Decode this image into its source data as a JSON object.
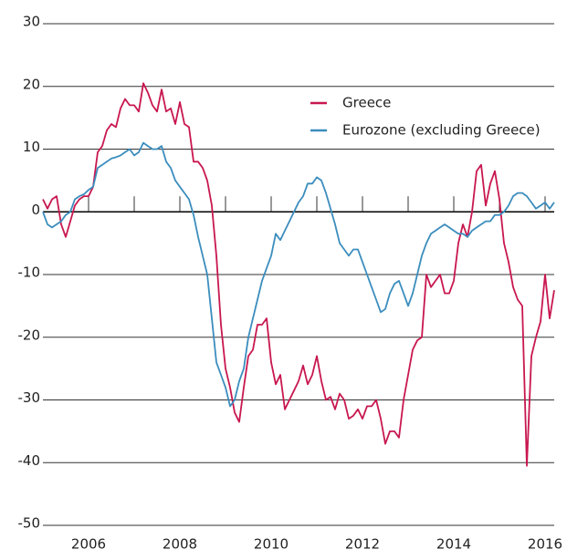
{
  "chart_data": {
    "type": "line",
    "x": [
      2005,
      2005.1,
      2005.2,
      2005.3,
      2005.4,
      2005.5,
      2005.6,
      2005.7,
      2005.8,
      2005.9,
      2006,
      2006.1,
      2006.2,
      2006.3,
      2006.4,
      2006.5,
      2006.6,
      2006.7,
      2006.8,
      2006.9,
      2007,
      2007.1,
      2007.2,
      2007.3,
      2007.4,
      2007.5,
      2007.6,
      2007.7,
      2007.8,
      2007.9,
      2008,
      2008.1,
      2008.2,
      2008.3,
      2008.4,
      2008.5,
      2008.6,
      2008.7,
      2008.8,
      2008.9,
      2009,
      2009.1,
      2009.2,
      2009.3,
      2009.4,
      2009.5,
      2009.6,
      2009.7,
      2009.8,
      2009.9,
      2010,
      2010.1,
      2010.2,
      2010.3,
      2010.4,
      2010.5,
      2010.6,
      2010.7,
      2010.8,
      2010.9,
      2011,
      2011.1,
      2011.2,
      2011.3,
      2011.4,
      2011.5,
      2011.6,
      2011.7,
      2011.8,
      2011.9,
      2012,
      2012.1,
      2012.2,
      2012.3,
      2012.4,
      2012.5,
      2012.6,
      2012.7,
      2012.8,
      2012.9,
      2013,
      2013.1,
      2013.2,
      2013.3,
      2013.4,
      2013.5,
      2013.6,
      2013.7,
      2013.8,
      2013.9,
      2014,
      2014.1,
      2014.2,
      2014.3,
      2014.4,
      2014.5,
      2014.6,
      2014.7,
      2014.8,
      2014.9,
      2015,
      2015.1,
      2015.2,
      2015.3,
      2015.4,
      2015.5,
      2015.6,
      2015.7,
      2015.8,
      2015.9,
      2016,
      2016.1,
      2016.2
    ],
    "series": [
      {
        "name": "Greece",
        "color": "#c8174f",
        "values": [
          2,
          0.5,
          2,
          2.5,
          -2,
          -4,
          -1.5,
          1,
          2,
          2.5,
          2.5,
          4,
          9.5,
          10.5,
          13,
          14,
          13.5,
          16.5,
          18,
          17,
          17,
          16,
          20.5,
          19,
          17,
          16,
          19.5,
          16,
          16.5,
          14,
          17.5,
          14,
          13.5,
          8,
          8,
          7,
          5,
          1,
          -7,
          -18,
          -25,
          -28,
          -32,
          -33.5,
          -28,
          -23,
          -22,
          -18,
          -18,
          -17,
          -24,
          -27.5,
          -26,
          -31.5,
          -30,
          -28.5,
          -27,
          -24.5,
          -27.5,
          -26,
          -23,
          -27,
          -30,
          -29.5,
          -31.5,
          -29,
          -30,
          -33,
          -32.5,
          -31.5,
          -33,
          -31,
          -31,
          -30,
          -33,
          -37,
          -35,
          -35,
          -36,
          -30,
          -26,
          -22,
          -20.5,
          -20,
          -10,
          -12,
          -11,
          -10,
          -13,
          -13,
          -11,
          -5,
          -2,
          -4,
          0,
          6.5,
          7.5,
          1,
          4.5,
          6.5,
          2,
          -5,
          -8,
          -12,
          -14,
          -15,
          -40.5,
          -23,
          -20,
          -17.5,
          -10,
          -17,
          -12.5
        ]
      },
      {
        "name": "Eurozone (excluding Greece)",
        "color": "#3b8dbd",
        "values": [
          0,
          -2,
          -2.5,
          -2,
          -1.5,
          -0.5,
          0,
          2,
          2.5,
          2.8,
          3.5,
          4,
          7,
          7.5,
          8,
          8.5,
          8.7,
          9,
          9.5,
          10,
          9,
          9.5,
          11,
          10.5,
          10,
          10,
          10.5,
          8,
          7,
          5,
          4,
          3,
          2,
          -0.5,
          -4,
          -7,
          -10,
          -17,
          -24,
          -26,
          -28,
          -31,
          -30,
          -27,
          -25,
          -20,
          -17,
          -14,
          -11,
          -9,
          -7,
          -3.5,
          -4.5,
          -3,
          -1.5,
          0,
          1.5,
          2.5,
          4.5,
          4.5,
          5.5,
          5,
          3,
          0.5,
          -2,
          -5,
          -6,
          -7,
          -6,
          -6,
          -8,
          -10,
          -12,
          -14,
          -16,
          -15.5,
          -13,
          -11.5,
          -11,
          -13,
          -15,
          -13,
          -10,
          -7,
          -5,
          -3.5,
          -3,
          -2.5,
          -2,
          -2.5,
          -3,
          -3.5,
          -3.5,
          -4,
          -3,
          -2.5,
          -2,
          -1.5,
          -1.5,
          -0.5,
          -0.5,
          0,
          1,
          2.5,
          3,
          3,
          2.5,
          1.5,
          0.5,
          1,
          1.5,
          0.5,
          1.5
        ]
      }
    ],
    "xlim": [
      2005,
      2016.2
    ],
    "xticks": [
      2006,
      2008,
      2010,
      2012,
      2014,
      2016
    ],
    "minor_xticks": [
      2007,
      2009,
      2011,
      2013,
      2015
    ],
    "ylim": [
      -50,
      30
    ],
    "yticks": [
      30,
      20,
      10,
      0,
      -10,
      -20,
      -30,
      -40,
      -50
    ],
    "grid": true,
    "legend": "upper right"
  }
}
